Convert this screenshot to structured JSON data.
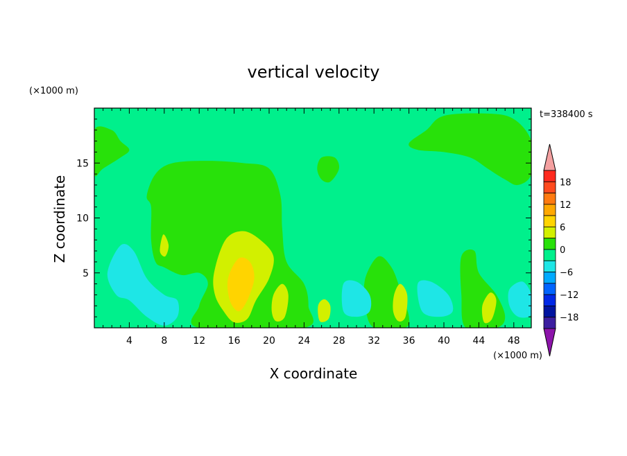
{
  "chart_data": {
    "type": "heatmap",
    "title": "vertical velocity",
    "xlabel": "X coordinate",
    "ylabel": "Z coordinate",
    "x_unit": "(×1000 m)",
    "y_unit": "(×1000 m)",
    "time_label": "t=338400 s",
    "xlim": [
      0,
      50
    ],
    "ylim": [
      0,
      20
    ],
    "x_ticks": [
      4,
      8,
      12,
      16,
      20,
      24,
      28,
      32,
      36,
      40,
      44,
      48
    ],
    "y_ticks": [
      5,
      10,
      15
    ],
    "colorbar": {
      "ticks": [
        18,
        12,
        6,
        0,
        -6,
        -12,
        -18
      ],
      "levels": [
        {
          "from": 18,
          "to": 21,
          "color": "#ff2a1e"
        },
        {
          "from": 15,
          "to": 18,
          "color": "#ff4a1e"
        },
        {
          "from": 12,
          "to": 15,
          "color": "#ff7a10"
        },
        {
          "from": 9,
          "to": 12,
          "color": "#ffa800"
        },
        {
          "from": 6,
          "to": 9,
          "color": "#ffd400"
        },
        {
          "from": 3,
          "to": 6,
          "color": "#d2f000"
        },
        {
          "from": 0,
          "to": 3,
          "color": "#28e10a"
        },
        {
          "from": -3,
          "to": 0,
          "color": "#00f08c"
        },
        {
          "from": -6,
          "to": -3,
          "color": "#1ee6e6"
        },
        {
          "from": -9,
          "to": -6,
          "color": "#00aaff"
        },
        {
          "from": -12,
          "to": -9,
          "color": "#0064ff"
        },
        {
          "from": -15,
          "to": -12,
          "color": "#0028e6"
        },
        {
          "from": -18,
          "to": -15,
          "color": "#0014a0"
        },
        {
          "from": -21,
          "to": -18,
          "color": "#3c1ea0"
        }
      ],
      "over_color": "#f4a0a0",
      "under_color": "#8c14aa"
    },
    "background_level_color": "#00f08c",
    "regions": [
      {
        "level": "0 to 3",
        "color": "#28e10a",
        "desc": "large updraft plume",
        "points": [
          [
            6.5,
            11
          ],
          [
            6,
            12
          ],
          [
            7,
            14
          ],
          [
            9,
            15
          ],
          [
            13,
            15.2
          ],
          [
            17,
            15
          ],
          [
            20,
            14.5
          ],
          [
            21.3,
            12
          ],
          [
            21.5,
            9
          ],
          [
            22,
            6
          ],
          [
            24,
            4
          ],
          [
            24.5,
            2
          ],
          [
            24,
            0
          ],
          [
            12,
            0
          ],
          [
            12,
            2
          ],
          [
            13,
            4
          ],
          [
            12,
            5
          ],
          [
            10,
            4.8
          ],
          [
            8,
            5.5
          ],
          [
            7,
            6
          ],
          [
            6.5,
            8
          ]
        ]
      },
      {
        "level": "0 to 3",
        "color": "#28e10a",
        "desc": "upper right cloud",
        "points": [
          [
            36,
            16.8
          ],
          [
            38,
            18
          ],
          [
            40,
            19.3
          ],
          [
            45,
            19.5
          ],
          [
            48,
            19
          ],
          [
            50,
            17
          ],
          [
            50,
            14
          ],
          [
            48.5,
            13
          ],
          [
            47,
            13.5
          ],
          [
            45,
            14.5
          ],
          [
            43,
            15.5
          ],
          [
            40,
            16
          ],
          [
            37,
            16.2
          ]
        ]
      },
      {
        "level": "0 to 3",
        "color": "#28e10a",
        "desc": "upper left strip",
        "points": [
          [
            0,
            18
          ],
          [
            2,
            18
          ],
          [
            3,
            17
          ],
          [
            4,
            16.2
          ],
          [
            3,
            15.5
          ],
          [
            1,
            14.5
          ],
          [
            0,
            14
          ]
        ]
      },
      {
        "level": "0 to 3",
        "color": "#28e10a",
        "desc": "small patch",
        "points": [
          [
            26,
            15.5
          ],
          [
            27.5,
            15.5
          ],
          [
            28,
            14.5
          ],
          [
            27,
            13.3
          ],
          [
            26,
            13.5
          ],
          [
            25.5,
            14.5
          ]
        ]
      },
      {
        "level": "0 to 3",
        "color": "#28e10a",
        "desc": "lower mid patch",
        "points": [
          [
            31,
            4.5
          ],
          [
            32.5,
            6.5
          ],
          [
            34,
            5.5
          ],
          [
            35,
            3.5
          ],
          [
            36,
            1
          ],
          [
            35.5,
            0
          ],
          [
            32,
            0
          ],
          [
            31,
            2
          ]
        ]
      },
      {
        "level": "0 to 3",
        "color": "#28e10a",
        "desc": "lower right patch",
        "points": [
          [
            42,
            6.5
          ],
          [
            43.5,
            7
          ],
          [
            44,
            5
          ],
          [
            46,
            3
          ],
          [
            47,
            1
          ],
          [
            46,
            0
          ],
          [
            42.5,
            0
          ],
          [
            42,
            3
          ]
        ]
      },
      {
        "level": "-3 to -6",
        "color": "#1ee6e6",
        "desc": "left lower downdraft",
        "points": [
          [
            1.5,
            5
          ],
          [
            3,
            7.5
          ],
          [
            4.5,
            7
          ],
          [
            6,
            4.5
          ],
          [
            8,
            3
          ],
          [
            9.5,
            2.5
          ],
          [
            9.5,
            1
          ],
          [
            8,
            0.2
          ],
          [
            6,
            1
          ],
          [
            4,
            2.5
          ],
          [
            2.5,
            3
          ]
        ]
      },
      {
        "level": "-3 to -6",
        "color": "#1ee6e6",
        "desc": "mid lower downdraft",
        "points": [
          [
            28.5,
            4
          ],
          [
            30,
            4.2
          ],
          [
            31.5,
            3
          ],
          [
            31.5,
            1.5
          ],
          [
            30,
            1
          ],
          [
            28.5,
            1.5
          ]
        ]
      },
      {
        "level": "-3 to -6",
        "color": "#1ee6e6",
        "desc": "right lower downdraft",
        "points": [
          [
            37,
            4
          ],
          [
            38.5,
            4.2
          ],
          [
            40.5,
            3
          ],
          [
            41,
            1.5
          ],
          [
            39.5,
            1
          ],
          [
            37.5,
            1.5
          ]
        ]
      },
      {
        "level": "-3 to -6",
        "color": "#1ee6e6",
        "desc": "far right downdraft",
        "points": [
          [
            47.5,
            3.5
          ],
          [
            49,
            4.2
          ],
          [
            50,
            3
          ],
          [
            50,
            1.2
          ],
          [
            48.5,
            1
          ],
          [
            47.5,
            2
          ]
        ]
      },
      {
        "level": "3 to 6",
        "color": "#d2f000",
        "desc": "main updraft core outer",
        "points": [
          [
            13.7,
            5
          ],
          [
            15,
            8
          ],
          [
            17,
            8.8
          ],
          [
            19,
            8
          ],
          [
            20.5,
            6.5
          ],
          [
            20,
            4.5
          ],
          [
            18.5,
            2.5
          ],
          [
            17.5,
            0.8
          ],
          [
            16,
            0.5
          ],
          [
            14.8,
            1.5
          ],
          [
            13.8,
            3
          ]
        ]
      },
      {
        "level": "6 to 9",
        "color": "#ffd400",
        "desc": "main updraft core",
        "points": [
          [
            15.3,
            4.5
          ],
          [
            16.5,
            6.3
          ],
          [
            17.8,
            6
          ],
          [
            18.3,
            4.5
          ],
          [
            17.5,
            2.5
          ],
          [
            16.5,
            1.5
          ],
          [
            15.5,
            2.5
          ]
        ]
      },
      {
        "level": "3 to 6",
        "color": "#d2f000",
        "desc": "cell near x=21",
        "points": [
          [
            20.5,
            3
          ],
          [
            21.5,
            4
          ],
          [
            22.2,
            3
          ],
          [
            21.8,
            1
          ],
          [
            20.8,
            0.6
          ],
          [
            20.3,
            1.5
          ]
        ]
      },
      {
        "level": "3 to 6",
        "color": "#d2f000",
        "desc": "cell near x=26",
        "points": [
          [
            25.6,
            2
          ],
          [
            26.3,
            2.6
          ],
          [
            27,
            2
          ],
          [
            26.8,
            0.8
          ],
          [
            25.8,
            0.6
          ]
        ]
      },
      {
        "level": "3 to 6",
        "color": "#d2f000",
        "desc": "cell near x=35",
        "points": [
          [
            34.3,
            3
          ],
          [
            35,
            4
          ],
          [
            35.8,
            3
          ],
          [
            35.6,
            1
          ],
          [
            34.8,
            0.6
          ],
          [
            34.2,
            1.5
          ]
        ]
      },
      {
        "level": "3 to 6",
        "color": "#d2f000",
        "desc": "cell near x=45",
        "points": [
          [
            44.4,
            2
          ],
          [
            45.3,
            3.2
          ],
          [
            46,
            2.5
          ],
          [
            45.5,
            0.8
          ],
          [
            44.6,
            0.5
          ]
        ]
      },
      {
        "level": "3 to 6",
        "color": "#d2f000",
        "desc": "small cell near x=8",
        "points": [
          [
            7.5,
            7
          ],
          [
            7.9,
            8.5
          ],
          [
            8.5,
            7.5
          ],
          [
            8.1,
            6.5
          ]
        ]
      }
    ]
  }
}
